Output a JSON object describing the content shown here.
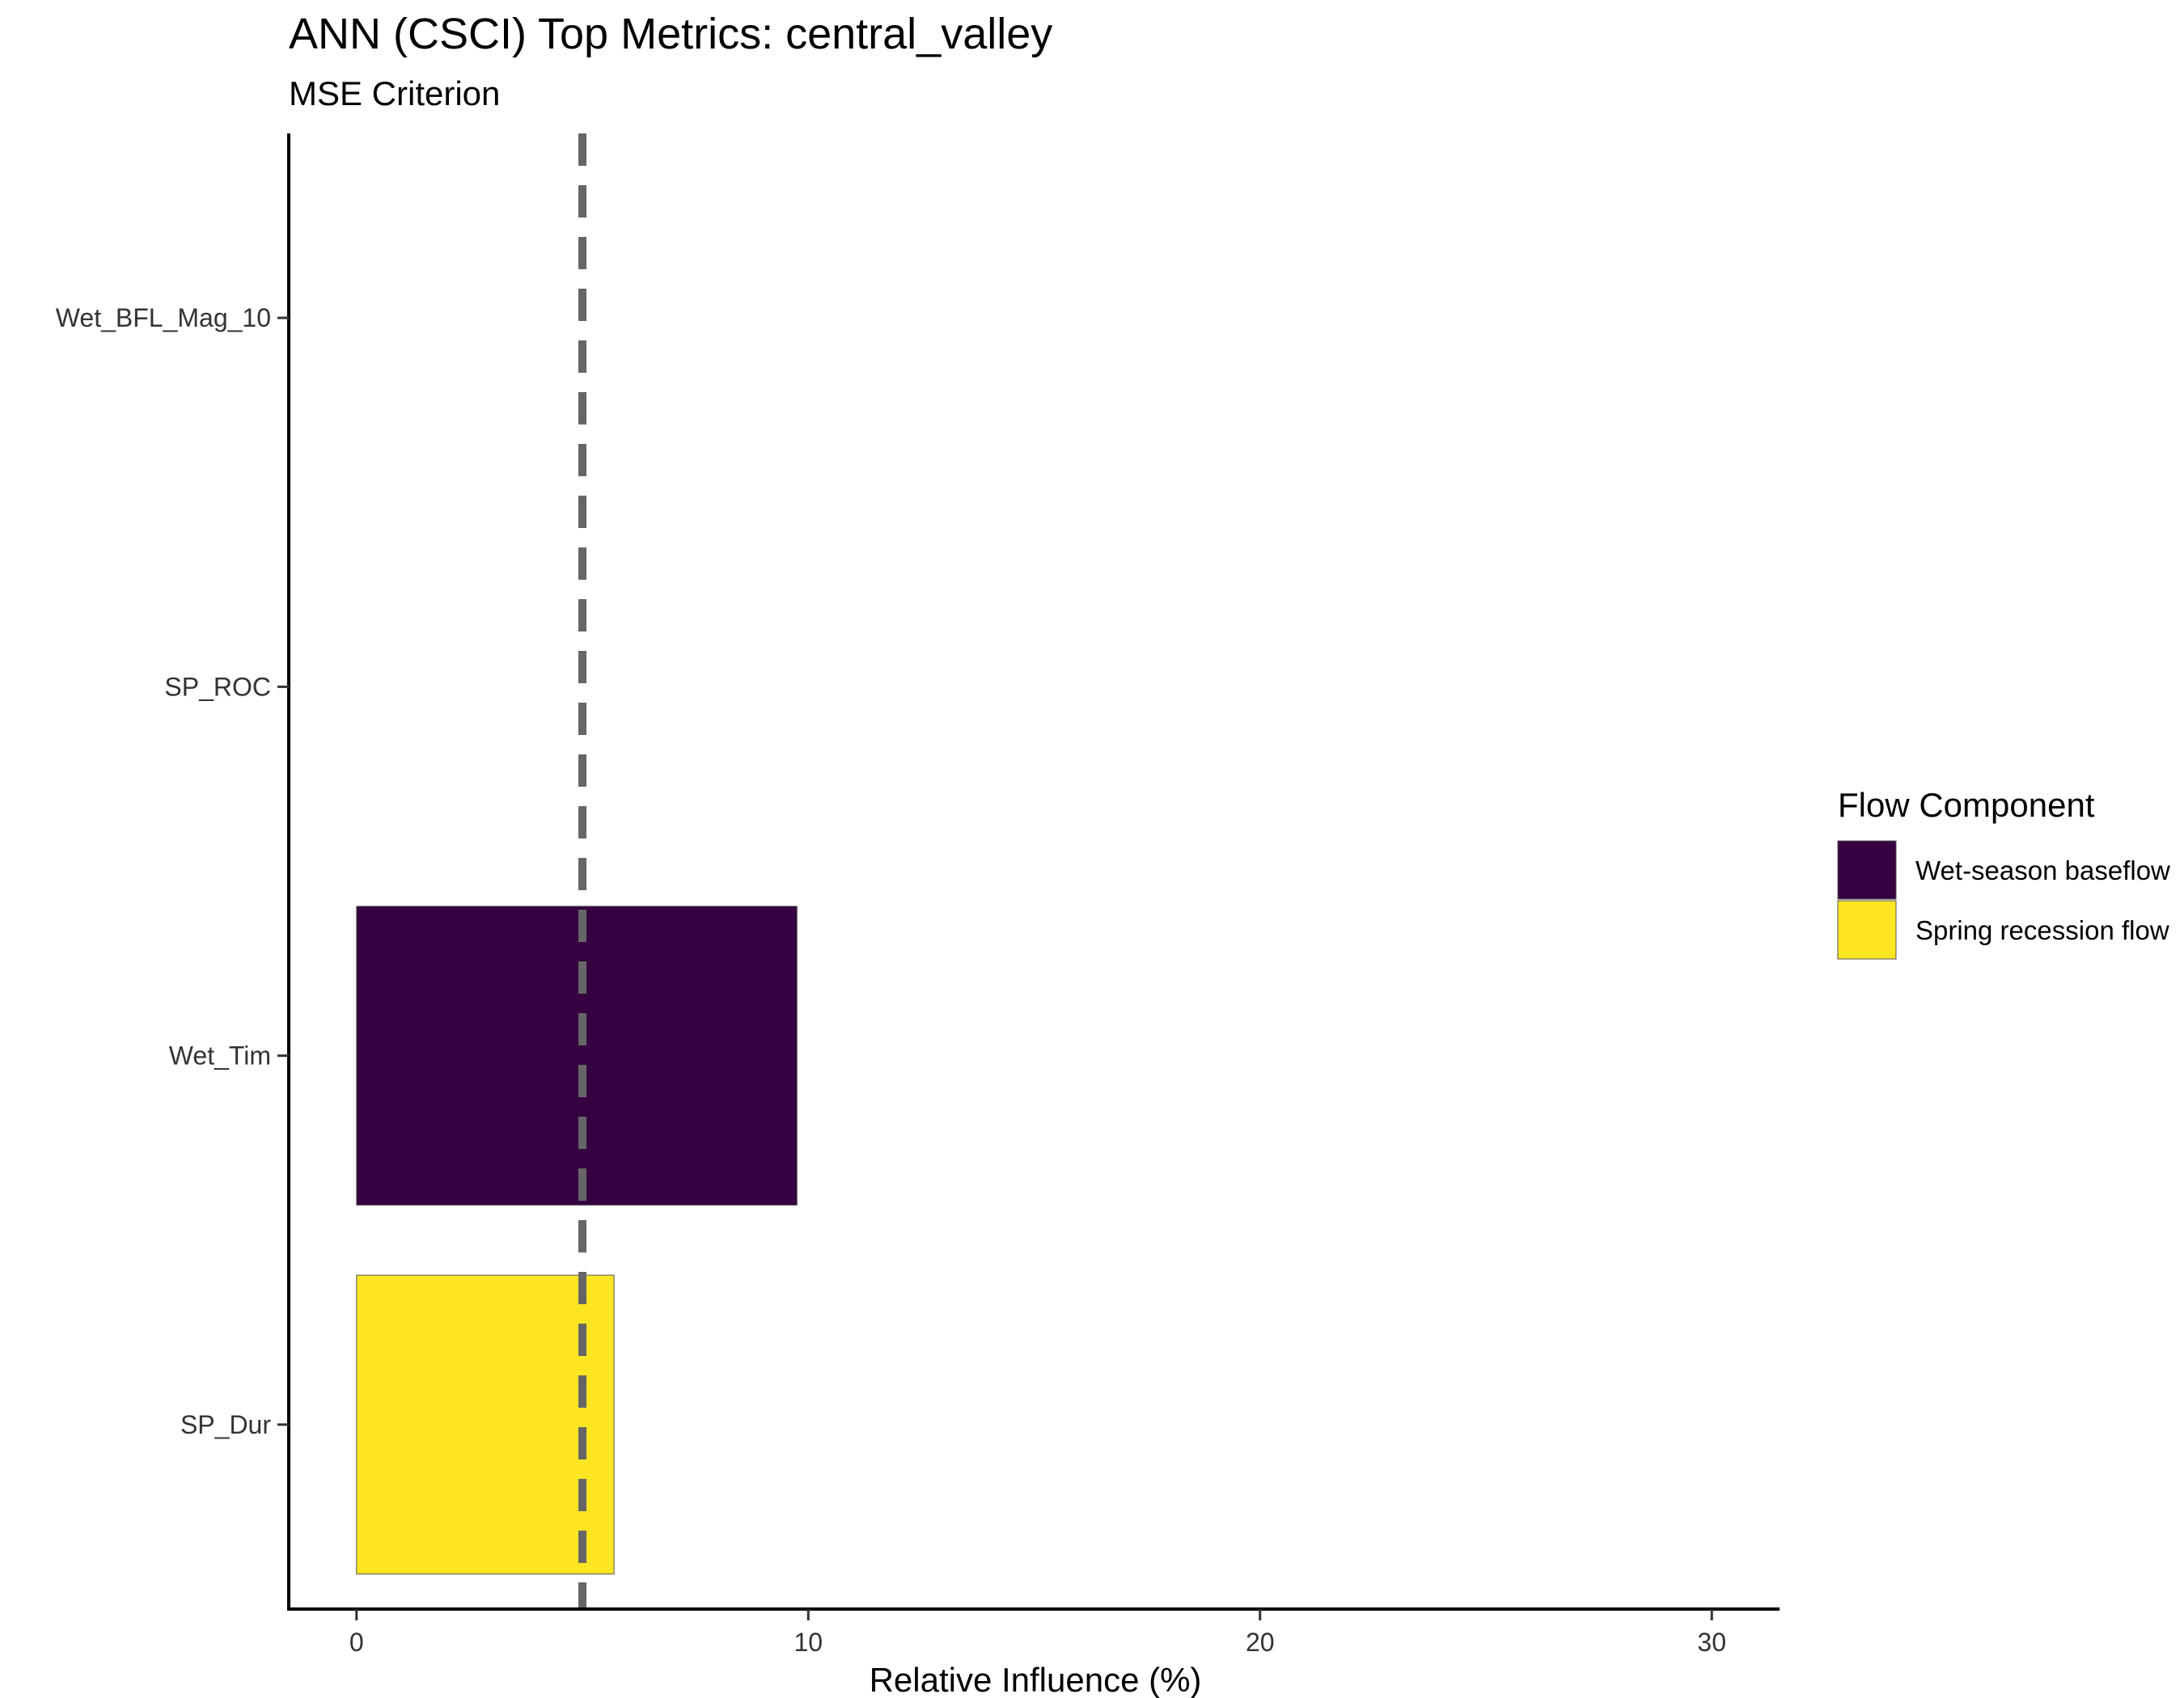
{
  "chart_data": {
    "type": "bar",
    "orientation": "horizontal",
    "title": "ANN (CSCI) Top Metrics: central_valley",
    "subtitle": "MSE Criterion",
    "xlabel": "Relative Influence (%)",
    "ylabel": "",
    "xlim": [
      -1.5,
      31.5
    ],
    "xticks": [
      0,
      10,
      20,
      30
    ],
    "categories": [
      "Wet_BFL_Mag_10",
      "SP_ROC",
      "Wet_Tim",
      "SP_Dur"
    ],
    "series": [
      {
        "name": "Wet-season baseflow",
        "color": "#350140",
        "values": [
          0,
          0,
          9.75,
          0
        ]
      },
      {
        "name": "Spring recession flow",
        "color": "#FDE521",
        "values": [
          0,
          0,
          0,
          5.7
        ]
      }
    ],
    "reference_line": {
      "x": 5,
      "style": "dashed",
      "color": "#666666"
    },
    "grid": false,
    "legend": {
      "title": "Flow Component",
      "position": "right"
    }
  }
}
